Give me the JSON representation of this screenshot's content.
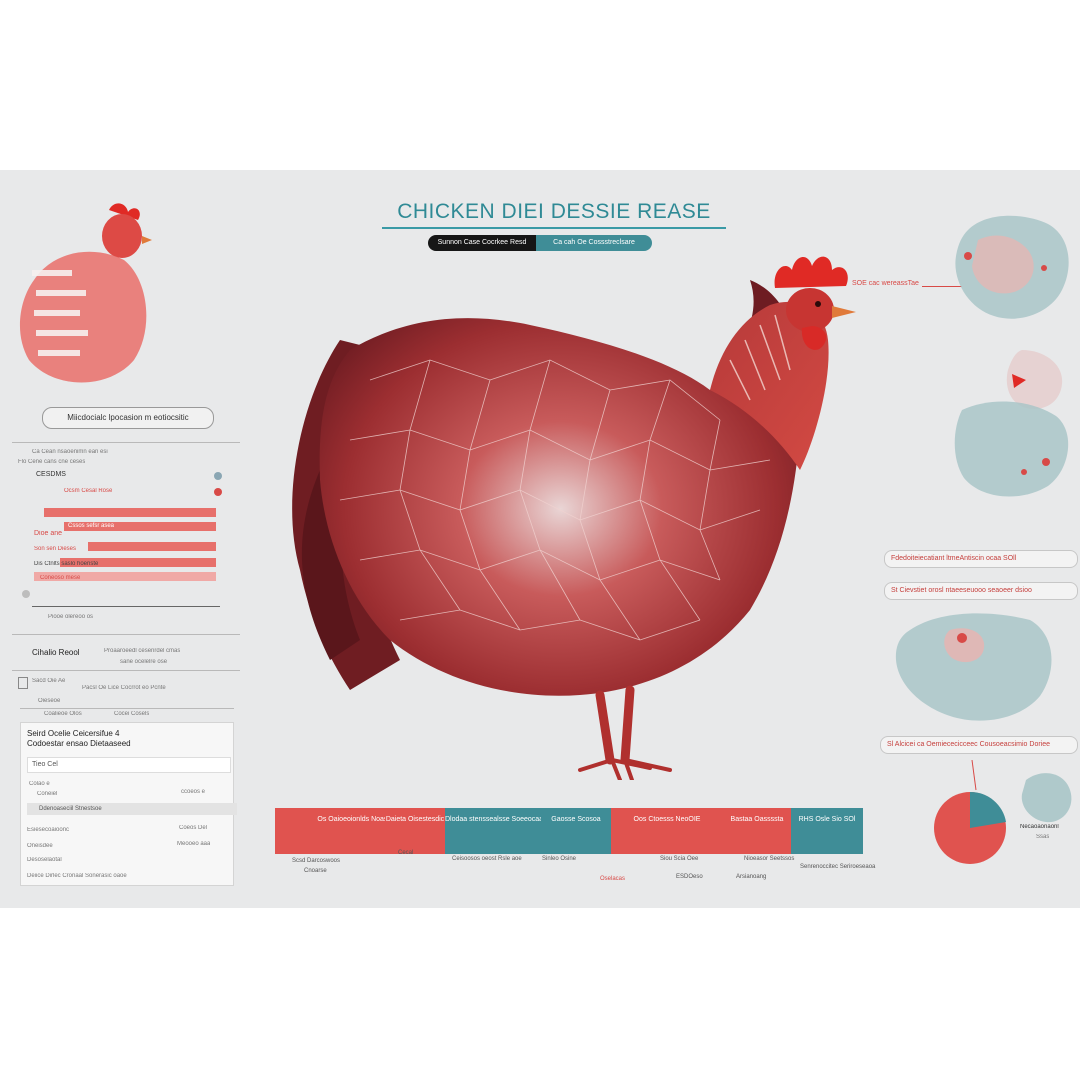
{
  "colors": {
    "background": "#e8e9ea",
    "accent_red": "#d84a47",
    "accent_teal": "#3f8d97",
    "title_teal": "#2f8a95",
    "dark": "#161616"
  },
  "header": {
    "title": "CHICKEN DIEI DESSIE REASE",
    "pill_left": "Sunnon Case Cocrkee  Resd",
    "pill_right": "Ca cah Oe Cossstreclsare"
  },
  "rooster_callout": "SOE  cac  wereassTae",
  "left": {
    "section_label": "Miicdocialc lpocasion m eotiocsitic",
    "stats_line_1": "Ca  Cean  nsaoenimn  ean     esi",
    "stats_line_2": "Flo Cene  cans cne  ceses",
    "item_1": "CESDMS",
    "item_1_right": "Ocsm   Cesal   Rose",
    "item_2_right": "Cssos  sefsr  asea",
    "item_3": "Dioe ane",
    "item_4": "Son   sen  Dieses",
    "item_5": "Dis Ctnlts   saslo   hoeriste",
    "item_6": "Coneoso   mese",
    "small_line": "Piooe   olereoo  os",
    "section_2_title": "Cihalio Reool",
    "section_2_right": "Proaaroeedl   cesenrdel   cmas",
    "section_2_sub": "sane   ocelelre   ose",
    "row_a": "Sacd  Oie  Ae",
    "row_a_right": "Pacsl  Oe  Lice  Cocrrot  eo  Pcnte",
    "row_b": "Oieseoe",
    "row_b_cols": [
      "Coalieoe  Olos",
      "Cocei  Cosels"
    ],
    "box_title": "Seird  Ocelie  Ceicersifue  4",
    "box_subtitle": "Codoestar  ensao Dietaaseed",
    "box_field": "Tieo  Cel",
    "box_row_1": "Colao  e",
    "box_row_2": "Coneiel",
    "box_row_2_right": "ccoeos e",
    "box_row_3": "Ddenoaseciil   Stnestsoe",
    "box_row_4": "Esiesecoaioonc",
    "box_row_4_right": "Coeos  Del",
    "box_row_5": "Oneisdee",
    "box_row_5_right": "Meooeo  aaa",
    "box_row_6": "Desoselaotal",
    "footer_line": "Deiice  Dirlec    Cronaal   Sonerasic  oaoe"
  },
  "right": {
    "pill_1": "Fdedoiteiecatiant  ltmeAntiscin  ocaa  SOll",
    "pill_2": "St  Cievstiet  orosl  ntaeeseuooo  seaoeer  dsioo",
    "pill_3": "Sl  Alcicei  ca  Oemiececicceec  Cousoeacsimio  Doriee",
    "pie_label_1": "Necaoaonaonl",
    "pie_label_2": "Ssas",
    "pie_share": 0.72
  },
  "table": {
    "cells": [
      {
        "label": "Os  Oaioeoionlds  Noasdaas",
        "color": "#e0534f"
      },
      {
        "label": "Daieta  Oisestesdic",
        "color": "#e0534f"
      },
      {
        "label": "Dlodaa  stenssealsse  Soeeocaasis",
        "color": "#3f8d97"
      },
      {
        "label": "Gaosse  Scosoa",
        "color": "#3f8d97"
      },
      {
        "label": "Oos  Ctoesss  NeoOIE",
        "color": "#e0534f"
      },
      {
        "label": "Bastaa  Oassssta",
        "color": "#e0534f"
      },
      {
        "label": "RHS  Osle  Sio  SOl",
        "color": "#3f8d97"
      }
    ],
    "labels_below": [
      "Scsd  Darcoswoos",
      "Cecal",
      "Ceisoosos  oeost  Rsle  aoe",
      "Sinleo  Osine",
      "Siou  Scia  Oee",
      "Nioeasor  Seetssos",
      "Senrenoccitec  Seriroeseaoa"
    ],
    "labels_below_2": [
      "Cnoarse",
      "Oselacas",
      "ESDOeso",
      "Arsianoang"
    ]
  }
}
